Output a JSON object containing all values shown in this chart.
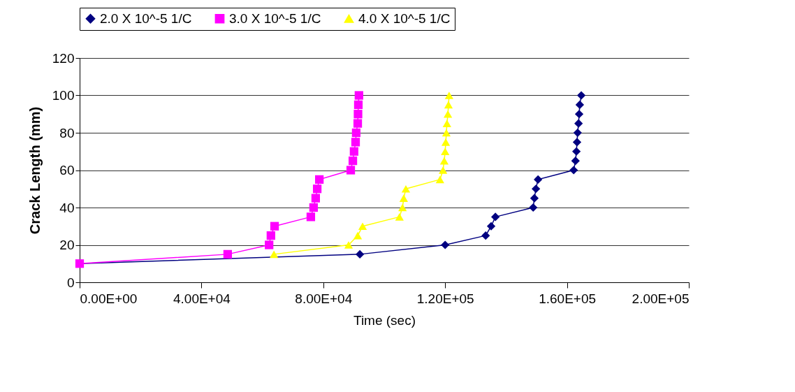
{
  "chart_data": {
    "type": "line",
    "xlabel": "Time (sec)",
    "ylabel": "Crack Length (mm)",
    "xlim": [
      0,
      200000
    ],
    "ylim": [
      0,
      120
    ],
    "xticks": [
      {
        "value": 0,
        "label": "0.00E+00"
      },
      {
        "value": 40000,
        "label": "4.00E+04"
      },
      {
        "value": 80000,
        "label": "8.00E+04"
      },
      {
        "value": 120000,
        "label": "1.20E+05"
      },
      {
        "value": 160000,
        "label": "1.60E+05"
      },
      {
        "value": 200000,
        "label": "2.00E+05"
      }
    ],
    "yticks": [
      0,
      20,
      40,
      60,
      80,
      100,
      120
    ],
    "grid": "y",
    "legend": "top",
    "line_style": "solid",
    "series": [
      {
        "name": "2.0 X 10^-5 1/C",
        "color": "#000080",
        "marker": "diamond",
        "x": [
          0,
          92000,
          120000,
          133300,
          135100,
          136500,
          148900,
          149300,
          149800,
          150500,
          162200,
          162800,
          163100,
          163300,
          163500,
          163800,
          164000,
          164200,
          164700
        ],
        "values": [
          10,
          15,
          20,
          25,
          30,
          35,
          40,
          45,
          50,
          55,
          60,
          65,
          70,
          75,
          80,
          85,
          90,
          95,
          100
        ]
      },
      {
        "name": "3.0 X 10^-5 1/C",
        "color": "#ff00ff",
        "marker": "square",
        "x": [
          0,
          48600,
          62200,
          62800,
          64000,
          75900,
          76800,
          77500,
          78000,
          78700,
          89000,
          89700,
          90100,
          90600,
          90800,
          91300,
          91400,
          91500,
          91700
        ],
        "values": [
          10,
          15,
          20,
          25,
          30,
          35,
          40,
          45,
          50,
          55,
          60,
          65,
          70,
          75,
          80,
          85,
          90,
          95,
          100
        ]
      },
      {
        "name": "4.0 X 10^-5 1/C",
        "color": "#ffff00",
        "marker": "triangle",
        "x": [
          63800,
          88300,
          91300,
          92900,
          105000,
          106000,
          106400,
          107100,
          118300,
          119300,
          119700,
          120000,
          120200,
          120400,
          120600,
          120900,
          121100,
          121300
        ],
        "values": [
          15,
          20,
          25,
          30,
          35,
          40,
          45,
          50,
          55,
          60,
          65,
          70,
          75,
          80,
          85,
          90,
          95,
          100
        ]
      }
    ]
  }
}
